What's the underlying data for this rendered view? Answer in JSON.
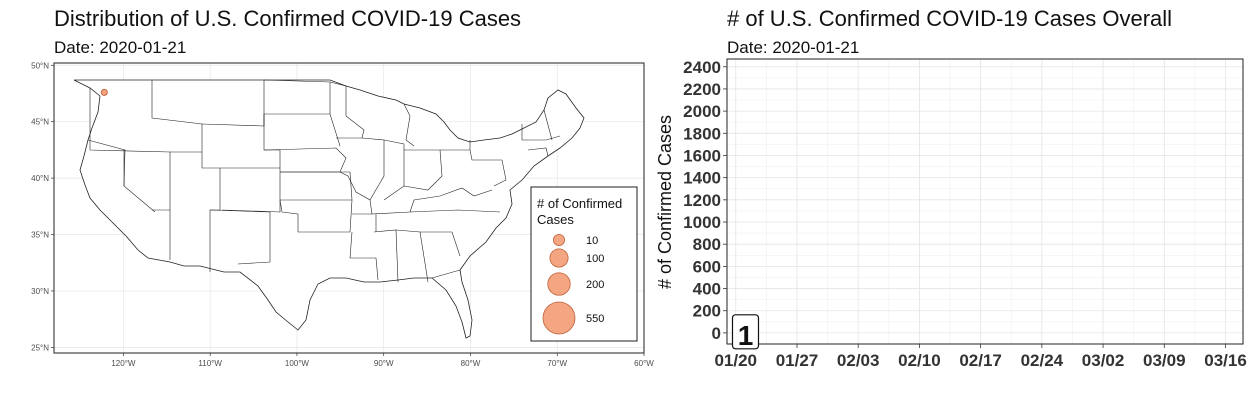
{
  "chart_data": [
    {
      "type": "map",
      "title": "Distribution of U.S. Confirmed COVID-19 Cases",
      "subtitle": "Date: 2020-01-21",
      "x_ticks": [
        "120°W",
        "110°W",
        "100°W",
        "90°W",
        "80°W",
        "70°W",
        "60°W"
      ],
      "y_ticks": [
        "50°N",
        "45°N",
        "40°N",
        "35°N",
        "30°N",
        "25°N"
      ],
      "xlim": [
        -128,
        -60
      ],
      "ylim": [
        24.5,
        50.2
      ],
      "points": [
        {
          "lon": -122.2,
          "lat": 47.6,
          "cases": 1
        }
      ],
      "legend": {
        "title": "# of Confirmed Cases",
        "title_lines": [
          "# of Confirmed",
          "Cases"
        ],
        "entries": [
          {
            "label": "10",
            "value": 10
          },
          {
            "label": "100",
            "value": 100
          },
          {
            "label": "200",
            "value": 200
          },
          {
            "label": "550",
            "value": 550
          }
        ]
      },
      "point_color": "#f4a582",
      "point_stroke": "#c0623a",
      "grid": true,
      "legend_placement": "bottom-right"
    },
    {
      "type": "line",
      "title": "# of U.S. Confirmed COVID-19 Cases Overall",
      "subtitle": "Date: 2020-01-21",
      "ylabel": "# of Confirmed Cases",
      "y_ticks": [
        "0",
        "200",
        "400",
        "600",
        "800",
        "1000",
        "1200",
        "1400",
        "1600",
        "1800",
        "2000",
        "2200",
        "2400"
      ],
      "x_ticks": [
        "01/20",
        "01/27",
        "02/03",
        "02/10",
        "02/17",
        "02/24",
        "03/02",
        "03/09",
        "03/16"
      ],
      "x_tick_dates": [
        "2020-01-20",
        "2020-01-27",
        "2020-02-03",
        "2020-02-10",
        "2020-02-17",
        "2020-02-24",
        "2020-03-02",
        "2020-03-09",
        "2020-03-16"
      ],
      "xlim": [
        "2020-01-19",
        "2020-03-18"
      ],
      "ylim": [
        -100,
        2470
      ],
      "series": [
        {
          "points": [
            {
              "x": "2020-01-21",
              "y": 1
            }
          ]
        }
      ],
      "annotation": {
        "text": "1",
        "x": "2020-01-21",
        "y": 1
      },
      "grid": true
    }
  ]
}
